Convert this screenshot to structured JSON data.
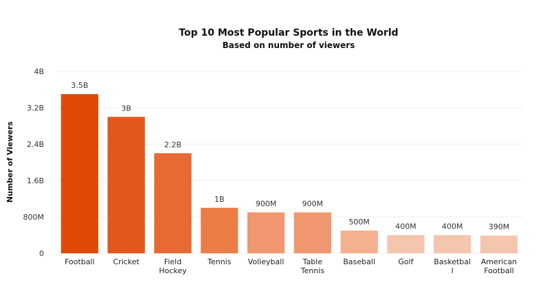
{
  "chart_data": {
    "type": "bar",
    "title": "Top 10 Most Popular Sports in the World",
    "subtitle": "Based on number of viewers",
    "xlabel": "",
    "ylabel": "Number of Viewers",
    "ylim": [
      0,
      4000000000
    ],
    "yticks": [
      0,
      800000000,
      1600000000,
      2400000000,
      3200000000,
      4000000000
    ],
    "ytick_labels": [
      "0",
      "800M",
      "1.6B",
      "2.4B",
      "3.2B",
      "4B"
    ],
    "grid": true,
    "categories": [
      [
        "Football"
      ],
      [
        "Cricket"
      ],
      [
        "Field",
        "Hockey"
      ],
      [
        "Tennis"
      ],
      [
        "Volleyball"
      ],
      [
        "Table",
        "Tennis"
      ],
      [
        "Baseball"
      ],
      [
        "Golf"
      ],
      [
        "Basketbal",
        "l"
      ],
      [
        "American",
        "Football"
      ]
    ],
    "values": [
      3500000000,
      3000000000,
      2200000000,
      1000000000,
      900000000,
      900000000,
      500000000,
      400000000,
      400000000,
      390000000
    ],
    "data_labels": [
      "3.5B",
      "3B",
      "2.2B",
      "1B",
      "900M",
      "900M",
      "500M",
      "400M",
      "400M",
      "390M"
    ],
    "colors": [
      "#e14a05",
      "#e4571a",
      "#e66a31",
      "#ec7c45",
      "#f0976f",
      "#f0976f",
      "#f4b08f",
      "#f5c6ae",
      "#f5c6ae",
      "#f5c6ae"
    ]
  }
}
